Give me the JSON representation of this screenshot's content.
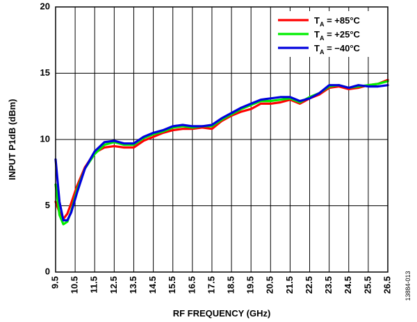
{
  "chart_data": {
    "type": "line",
    "title": "",
    "xlabel": "RF FREQUENCY (GHz)",
    "ylabel": "INPUT P1dB (dBm)",
    "xlim": [
      9.5,
      26.5
    ],
    "ylim": [
      0,
      20
    ],
    "x_ticks": [
      "9.5",
      "10.5",
      "11.5",
      "12.5",
      "13.5",
      "14.5",
      "15.5",
      "16.5",
      "17.5",
      "18.5",
      "19.5",
      "20.5",
      "21.5",
      "22.5",
      "23.5",
      "24.5",
      "25.5",
      "26.5"
    ],
    "y_ticks": [
      "0",
      "5",
      "10",
      "15",
      "20"
    ],
    "grid": true,
    "legend_position": "top-right",
    "figure_id": "13884-013",
    "series": [
      {
        "name": "T_A = +85°C",
        "label_main": "T",
        "label_sub": "A",
        "label_rest": " = +85°C",
        "color": "#ff0000",
        "x": [
          9.5,
          9.7,
          9.9,
          10.1,
          10.3,
          10.6,
          11.0,
          11.5,
          12.0,
          12.5,
          13.0,
          13.5,
          14.0,
          14.5,
          15.0,
          15.5,
          16.0,
          16.5,
          17.0,
          17.5,
          18.0,
          18.5,
          19.0,
          19.5,
          20.0,
          20.5,
          21.0,
          21.5,
          22.0,
          22.5,
          23.0,
          23.5,
          24.0,
          24.5,
          25.0,
          25.5,
          26.0,
          26.5
        ],
        "y": [
          5.3,
          4.5,
          4.0,
          4.4,
          5.2,
          6.5,
          7.9,
          9.0,
          9.4,
          9.5,
          9.4,
          9.4,
          9.9,
          10.2,
          10.5,
          10.7,
          10.8,
          10.8,
          10.9,
          10.8,
          11.4,
          11.8,
          12.1,
          12.3,
          12.7,
          12.7,
          12.8,
          13.0,
          12.7,
          13.1,
          13.4,
          13.9,
          14.0,
          13.8,
          13.9,
          14.1,
          14.2,
          14.5
        ]
      },
      {
        "name": "T_A = +25°C",
        "label_main": "T",
        "label_sub": "A",
        "label_rest": " = +25°C",
        "color": "#00ee00",
        "x": [
          9.5,
          9.7,
          9.9,
          10.1,
          10.3,
          10.6,
          11.0,
          11.5,
          12.0,
          12.5,
          13.0,
          13.5,
          14.0,
          14.5,
          15.0,
          15.5,
          16.0,
          16.5,
          17.0,
          17.5,
          18.0,
          18.5,
          19.0,
          19.5,
          20.0,
          20.5,
          21.0,
          21.5,
          22.0,
          22.5,
          23.0,
          23.5,
          24.0,
          24.5,
          25.0,
          25.5,
          26.0,
          26.5
        ],
        "y": [
          6.6,
          4.3,
          3.6,
          3.8,
          4.6,
          6.2,
          7.8,
          8.9,
          9.6,
          9.8,
          9.6,
          9.6,
          10.1,
          10.4,
          10.6,
          10.9,
          11.0,
          10.9,
          11.0,
          11.0,
          11.5,
          11.9,
          12.3,
          12.6,
          12.9,
          12.9,
          13.0,
          13.1,
          12.8,
          13.2,
          13.5,
          14.0,
          14.1,
          13.9,
          14.0,
          14.1,
          14.2,
          14.4
        ]
      },
      {
        "name": "T_A = −40°C",
        "label_main": "T",
        "label_sub": "A",
        "label_rest": " = −40°C",
        "color": "#0000dd",
        "x": [
          9.5,
          9.7,
          9.9,
          10.1,
          10.3,
          10.6,
          11.0,
          11.5,
          12.0,
          12.5,
          13.0,
          13.5,
          14.0,
          14.5,
          15.0,
          15.5,
          16.0,
          16.5,
          17.0,
          17.5,
          18.0,
          18.5,
          19.0,
          19.5,
          20.0,
          20.5,
          21.0,
          21.5,
          22.0,
          22.5,
          23.0,
          23.5,
          24.0,
          24.5,
          25.0,
          25.5,
          26.0,
          26.5
        ],
        "y": [
          8.5,
          5.3,
          3.9,
          3.9,
          4.5,
          6.0,
          7.8,
          9.1,
          9.8,
          9.9,
          9.7,
          9.7,
          10.2,
          10.5,
          10.7,
          11.0,
          11.1,
          11.0,
          11.0,
          11.1,
          11.6,
          12.0,
          12.4,
          12.7,
          13.0,
          13.1,
          13.2,
          13.2,
          12.9,
          13.1,
          13.5,
          14.1,
          14.1,
          13.9,
          14.1,
          14.0,
          14.0,
          14.1
        ]
      }
    ]
  }
}
